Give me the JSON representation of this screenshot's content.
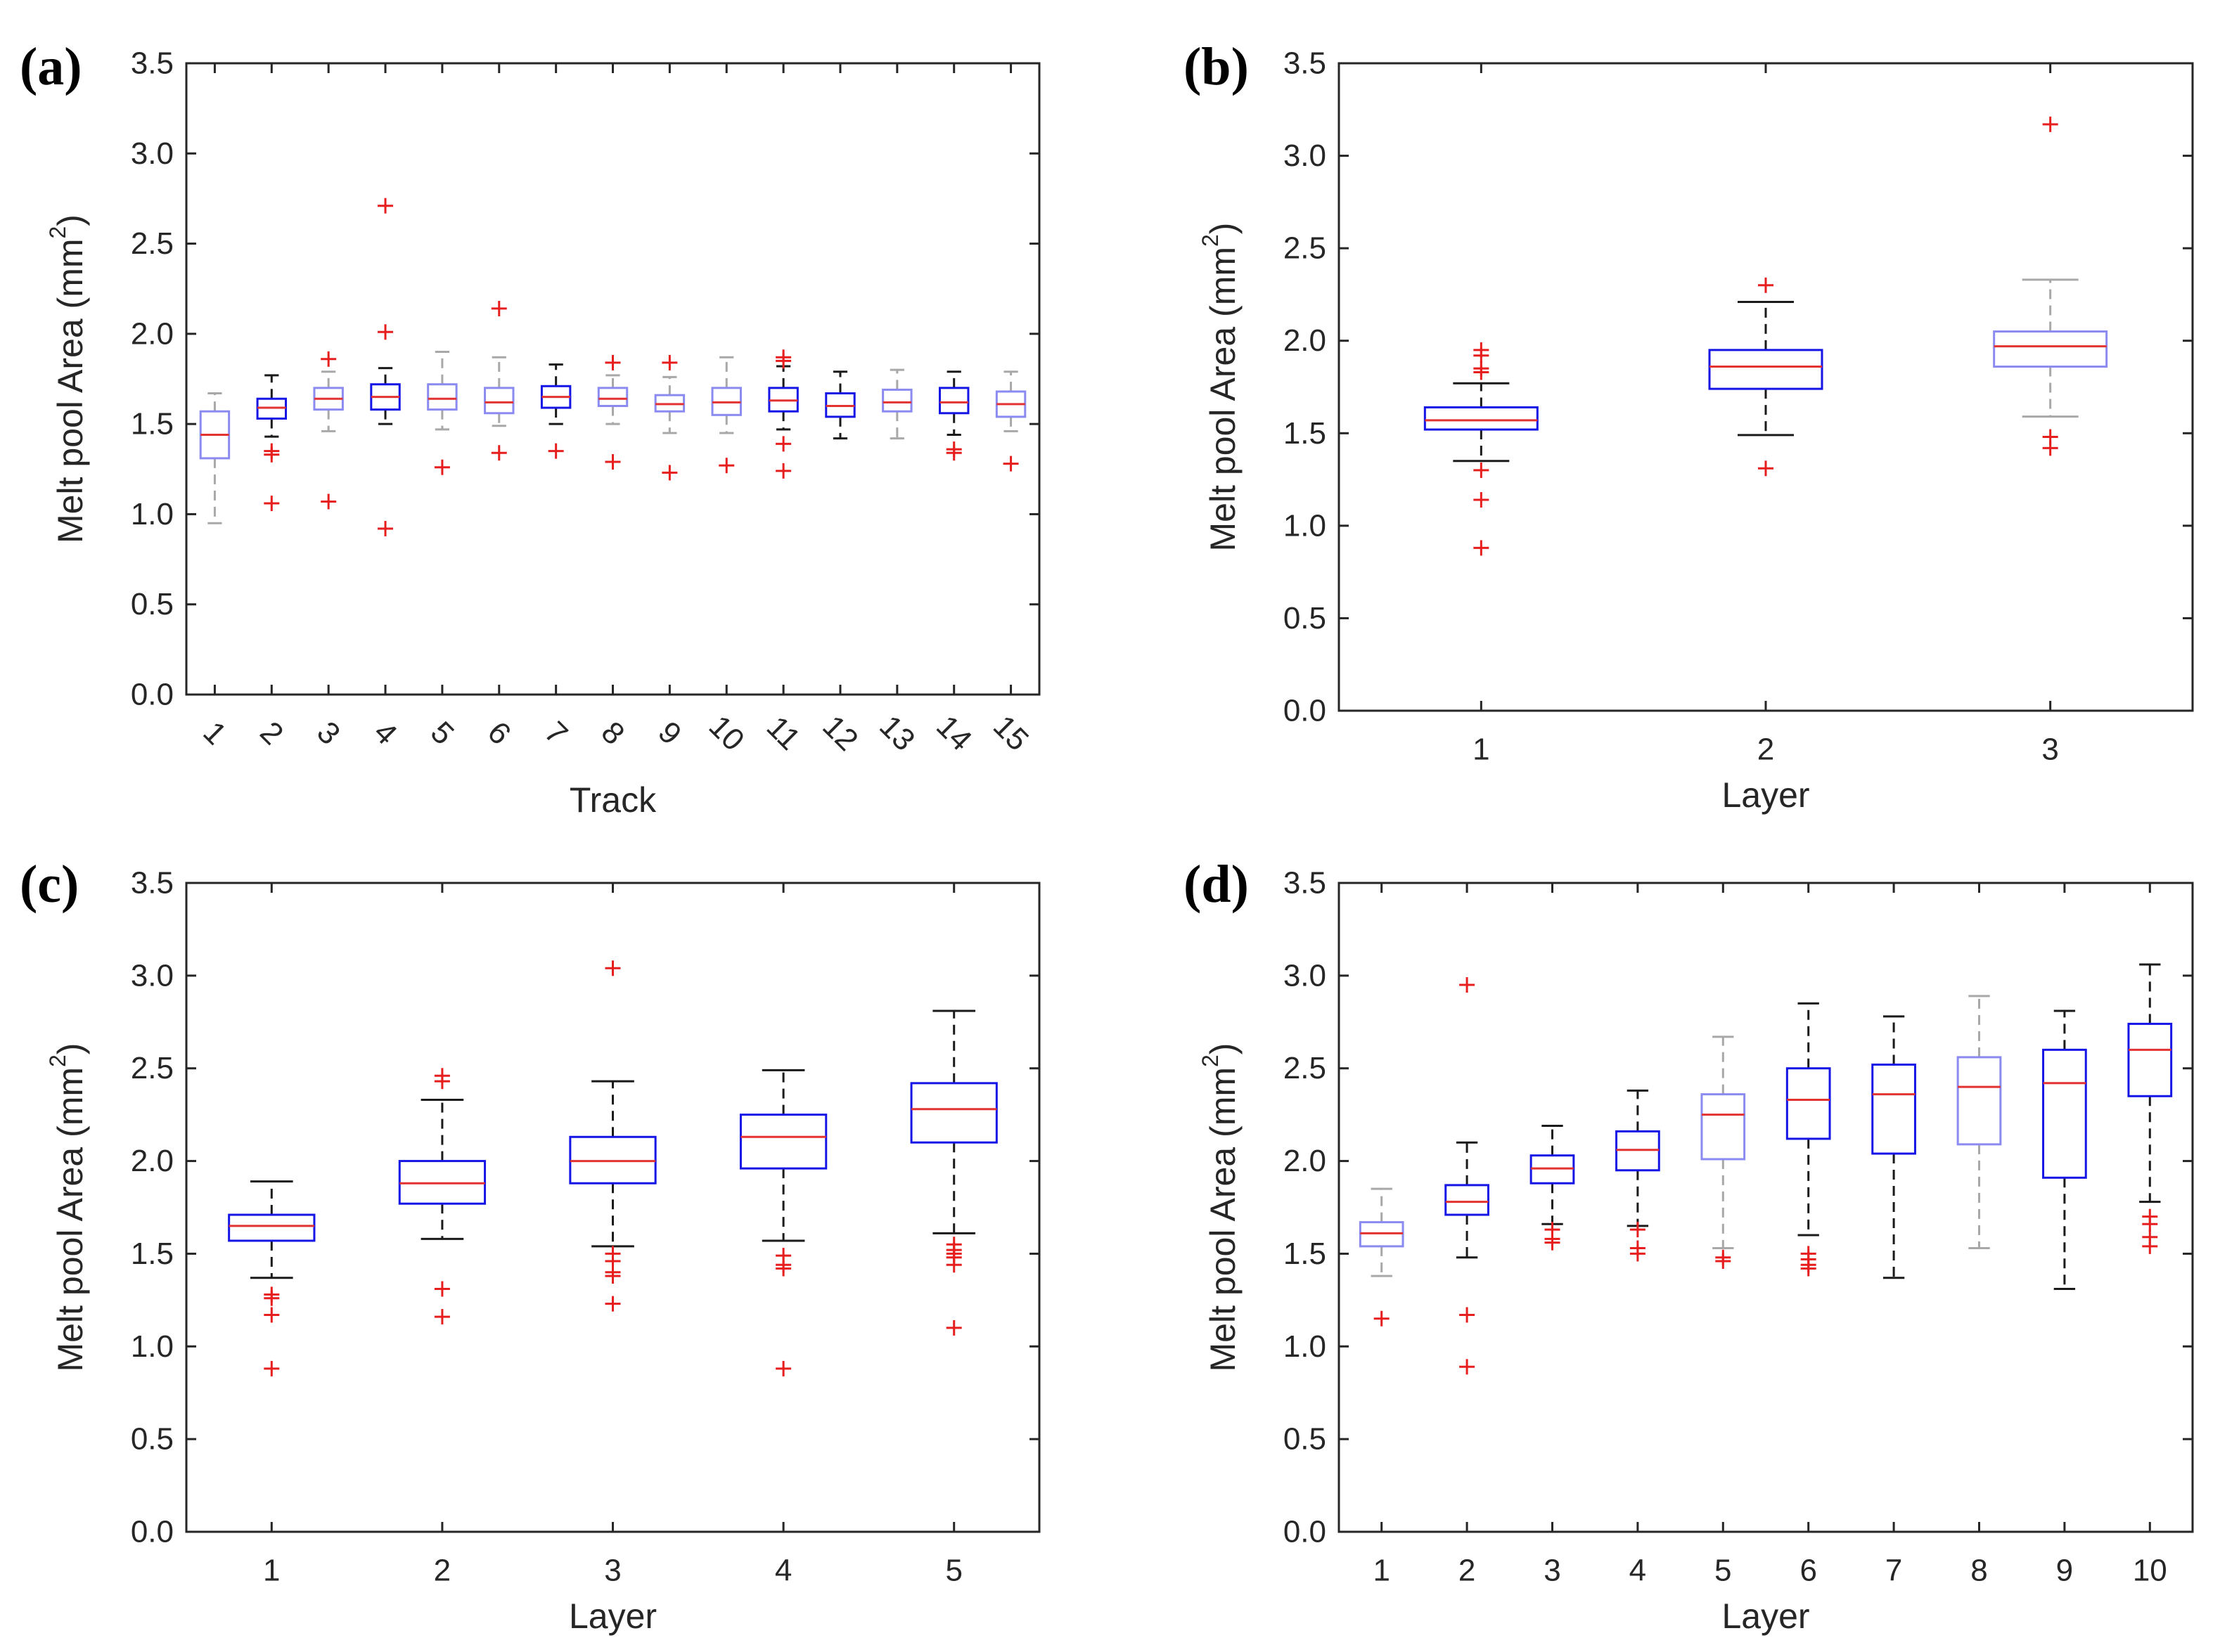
{
  "chart_data": [
    {
      "panel": "(a)",
      "type": "box",
      "xlabel": "Track",
      "ylabel": "Melt pool Area (mm",
      "ylabel_sup": "2",
      "ylabel_close": ")",
      "ylim": [
        0,
        3.5
      ],
      "yticks": [
        "0.0",
        "0.5",
        "1.0",
        "1.5",
        "2.0",
        "2.5",
        "3.0",
        "3.5"
      ],
      "rotated_xticks": true,
      "categories": [
        "1",
        "2",
        "3",
        "4",
        "5",
        "6",
        "7",
        "8",
        "9",
        "10",
        "11",
        "12",
        "13",
        "14",
        "15"
      ],
      "boxes": [
        {
          "q1": 1.31,
          "median": 1.44,
          "q3": 1.57,
          "wlo": 0.95,
          "whi": 1.67,
          "outliers": []
        },
        {
          "q1": 1.53,
          "median": 1.59,
          "q3": 1.64,
          "wlo": 1.43,
          "whi": 1.77,
          "outliers": [
            1.35,
            1.33,
            1.06
          ]
        },
        {
          "q1": 1.58,
          "median": 1.64,
          "q3": 1.7,
          "wlo": 1.46,
          "whi": 1.79,
          "outliers": [
            1.86,
            1.07
          ]
        },
        {
          "q1": 1.58,
          "median": 1.65,
          "q3": 1.72,
          "wlo": 1.5,
          "whi": 1.81,
          "outliers": [
            2.71,
            2.01,
            0.92
          ]
        },
        {
          "q1": 1.58,
          "median": 1.64,
          "q3": 1.72,
          "wlo": 1.47,
          "whi": 1.9,
          "outliers": [
            1.26
          ]
        },
        {
          "q1": 1.56,
          "median": 1.62,
          "q3": 1.7,
          "wlo": 1.49,
          "whi": 1.87,
          "outliers": [
            2.14,
            1.34
          ]
        },
        {
          "q1": 1.59,
          "median": 1.65,
          "q3": 1.71,
          "wlo": 1.5,
          "whi": 1.83,
          "outliers": [
            1.35
          ]
        },
        {
          "q1": 1.6,
          "median": 1.64,
          "q3": 1.7,
          "wlo": 1.5,
          "whi": 1.77,
          "outliers": [
            1.84,
            1.29
          ]
        },
        {
          "q1": 1.57,
          "median": 1.61,
          "q3": 1.66,
          "wlo": 1.45,
          "whi": 1.76,
          "outliers": [
            1.84,
            1.23
          ]
        },
        {
          "q1": 1.55,
          "median": 1.62,
          "q3": 1.7,
          "wlo": 1.45,
          "whi": 1.87,
          "outliers": [
            1.27
          ]
        },
        {
          "q1": 1.57,
          "median": 1.63,
          "q3": 1.7,
          "wlo": 1.47,
          "whi": 1.82,
          "outliers": [
            1.87,
            1.85,
            1.39,
            1.24
          ]
        },
        {
          "q1": 1.54,
          "median": 1.6,
          "q3": 1.67,
          "wlo": 1.42,
          "whi": 1.79,
          "outliers": []
        },
        {
          "q1": 1.57,
          "median": 1.62,
          "q3": 1.69,
          "wlo": 1.42,
          "whi": 1.8,
          "outliers": []
        },
        {
          "q1": 1.56,
          "median": 1.62,
          "q3": 1.7,
          "wlo": 1.44,
          "whi": 1.79,
          "outliers": [
            1.36,
            1.34
          ]
        },
        {
          "q1": 1.54,
          "median": 1.61,
          "q3": 1.68,
          "wlo": 1.46,
          "whi": 1.79,
          "outliers": [
            1.28
          ]
        }
      ]
    },
    {
      "panel": "(b)",
      "type": "box",
      "xlabel": "Layer",
      "ylabel": "Melt pool Area (mm",
      "ylabel_sup": "2",
      "ylabel_close": ")",
      "ylim": [
        0,
        3.5
      ],
      "yticks": [
        "0.0",
        "0.5",
        "1.0",
        "1.5",
        "2.0",
        "2.5",
        "3.0",
        "3.5"
      ],
      "rotated_xticks": false,
      "categories": [
        "1",
        "2",
        "3"
      ],
      "boxes": [
        {
          "q1": 1.52,
          "median": 1.57,
          "q3": 1.64,
          "wlo": 1.35,
          "whi": 1.77,
          "outliers": [
            1.95,
            1.92,
            1.85,
            1.83,
            1.3,
            1.14,
            0.88
          ]
        },
        {
          "q1": 1.74,
          "median": 1.86,
          "q3": 1.95,
          "wlo": 1.49,
          "whi": 2.21,
          "outliers": [
            2.3,
            1.31
          ]
        },
        {
          "q1": 1.86,
          "median": 1.97,
          "q3": 2.05,
          "wlo": 1.59,
          "whi": 2.33,
          "outliers": [
            3.17,
            1.48,
            1.42
          ]
        }
      ]
    },
    {
      "panel": "(c)",
      "type": "box",
      "xlabel": "Layer",
      "ylabel": "Melt pool Area (mm",
      "ylabel_sup": "2",
      "ylabel_close": ")",
      "ylim": [
        0,
        3.5
      ],
      "yticks": [
        "0.0",
        "0.5",
        "1.0",
        "1.5",
        "2.0",
        "2.5",
        "3.0",
        "3.5"
      ],
      "rotated_xticks": false,
      "categories": [
        "1",
        "2",
        "3",
        "4",
        "5"
      ],
      "boxes": [
        {
          "q1": 1.57,
          "median": 1.65,
          "q3": 1.71,
          "wlo": 1.37,
          "whi": 1.89,
          "outliers": [
            1.28,
            1.26,
            1.17,
            0.88
          ]
        },
        {
          "q1": 1.77,
          "median": 1.88,
          "q3": 2.0,
          "wlo": 1.58,
          "whi": 2.33,
          "outliers": [
            2.46,
            2.43,
            1.31,
            1.16
          ]
        },
        {
          "q1": 1.88,
          "median": 2.0,
          "q3": 2.13,
          "wlo": 1.54,
          "whi": 2.43,
          "outliers": [
            3.04,
            1.5,
            1.46,
            1.4,
            1.38,
            1.23
          ]
        },
        {
          "q1": 1.96,
          "median": 2.13,
          "q3": 2.25,
          "wlo": 1.57,
          "whi": 2.49,
          "outliers": [
            1.49,
            1.44,
            1.42,
            0.88
          ]
        },
        {
          "q1": 2.1,
          "median": 2.28,
          "q3": 2.42,
          "wlo": 1.61,
          "whi": 2.81,
          "outliers": [
            1.55,
            1.52,
            1.5,
            1.48,
            1.44,
            1.1
          ]
        }
      ]
    },
    {
      "panel": "(d)",
      "type": "box",
      "xlabel": "Layer",
      "ylabel": "Melt pool Area (mm",
      "ylabel_sup": "2",
      "ylabel_close": ")",
      "ylim": [
        0,
        3.5
      ],
      "yticks": [
        "0.0",
        "0.5",
        "1.0",
        "1.5",
        "2.0",
        "2.5",
        "3.0",
        "3.5"
      ],
      "rotated_xticks": false,
      "categories": [
        "1",
        "2",
        "3",
        "4",
        "5",
        "6",
        "7",
        "8",
        "9",
        "10"
      ],
      "boxes": [
        {
          "q1": 1.54,
          "median": 1.61,
          "q3": 1.67,
          "wlo": 1.38,
          "whi": 1.85,
          "outliers": [
            1.15
          ]
        },
        {
          "q1": 1.71,
          "median": 1.78,
          "q3": 1.87,
          "wlo": 1.48,
          "whi": 2.1,
          "outliers": [
            2.95,
            1.17,
            0.89
          ]
        },
        {
          "q1": 1.88,
          "median": 1.96,
          "q3": 2.03,
          "wlo": 1.66,
          "whi": 2.19,
          "outliers": [
            1.63,
            1.58,
            1.56
          ]
        },
        {
          "q1": 1.95,
          "median": 2.06,
          "q3": 2.16,
          "wlo": 1.65,
          "whi": 2.38,
          "outliers": [
            1.63,
            1.53,
            1.5
          ]
        },
        {
          "q1": 2.01,
          "median": 2.25,
          "q3": 2.36,
          "wlo": 1.53,
          "whi": 2.67,
          "outliers": [
            1.48,
            1.46
          ]
        },
        {
          "q1": 2.12,
          "median": 2.33,
          "q3": 2.5,
          "wlo": 1.6,
          "whi": 2.85,
          "outliers": [
            1.5,
            1.47,
            1.44,
            1.42
          ]
        },
        {
          "q1": 2.04,
          "median": 2.36,
          "q3": 2.52,
          "wlo": 1.37,
          "whi": 2.78,
          "outliers": []
        },
        {
          "q1": 2.09,
          "median": 2.4,
          "q3": 2.56,
          "wlo": 1.53,
          "whi": 2.89,
          "outliers": []
        },
        {
          "q1": 1.91,
          "median": 2.42,
          "q3": 2.6,
          "wlo": 1.31,
          "whi": 2.81,
          "outliers": []
        },
        {
          "q1": 2.35,
          "median": 2.6,
          "q3": 2.74,
          "wlo": 1.78,
          "whi": 3.06,
          "outliers": [
            1.7,
            1.66,
            1.59,
            1.54
          ]
        }
      ]
    }
  ],
  "colors": {
    "box": "#1515e6",
    "box_faint": "#8a8af0",
    "median": "#e23232",
    "whisker": "#1a1a1a",
    "whisker_faint": "#a8a8a8",
    "outlier": "#e61e1e",
    "axis": "#262626"
  }
}
